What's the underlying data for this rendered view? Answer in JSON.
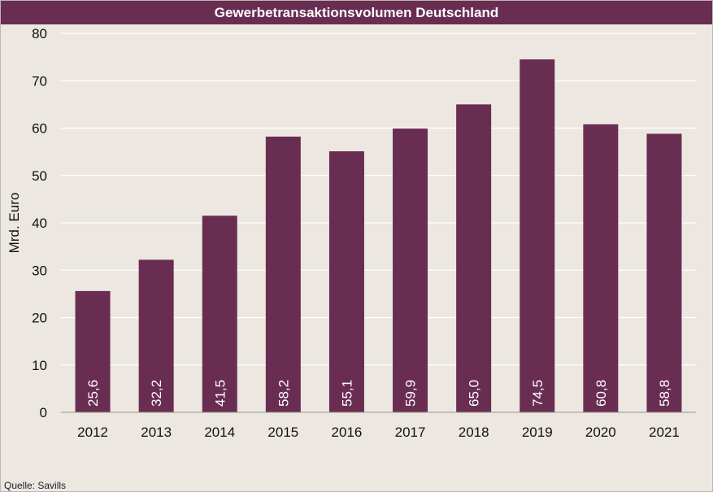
{
  "chart_data": {
    "type": "bar",
    "title": "Gewerbetransaktionsvolumen Deutschland",
    "ylabel": "Mrd. Euro",
    "xlabel": "",
    "categories": [
      "2012",
      "2013",
      "2014",
      "2015",
      "2016",
      "2017",
      "2018",
      "2019",
      "2020",
      "2021"
    ],
    "values": [
      25.6,
      32.2,
      41.5,
      58.2,
      55.1,
      59.9,
      65.0,
      74.5,
      60.8,
      58.8
    ],
    "value_labels": [
      "25,6",
      "32,2",
      "41,5",
      "58,2",
      "55,1",
      "59,9",
      "65,0",
      "74,5",
      "60,8",
      "58,8"
    ],
    "ylim": [
      0,
      80
    ],
    "yticks": [
      "0",
      "10",
      "20",
      "30",
      "40",
      "50",
      "60",
      "70",
      "80"
    ],
    "grid": true,
    "legend": "none",
    "colors": {
      "bar": "#6a2d52",
      "title_bar": "#6a2d52",
      "background": "#ece7e1",
      "grid": "#ffffff"
    }
  },
  "source": "Quelle: Savills"
}
